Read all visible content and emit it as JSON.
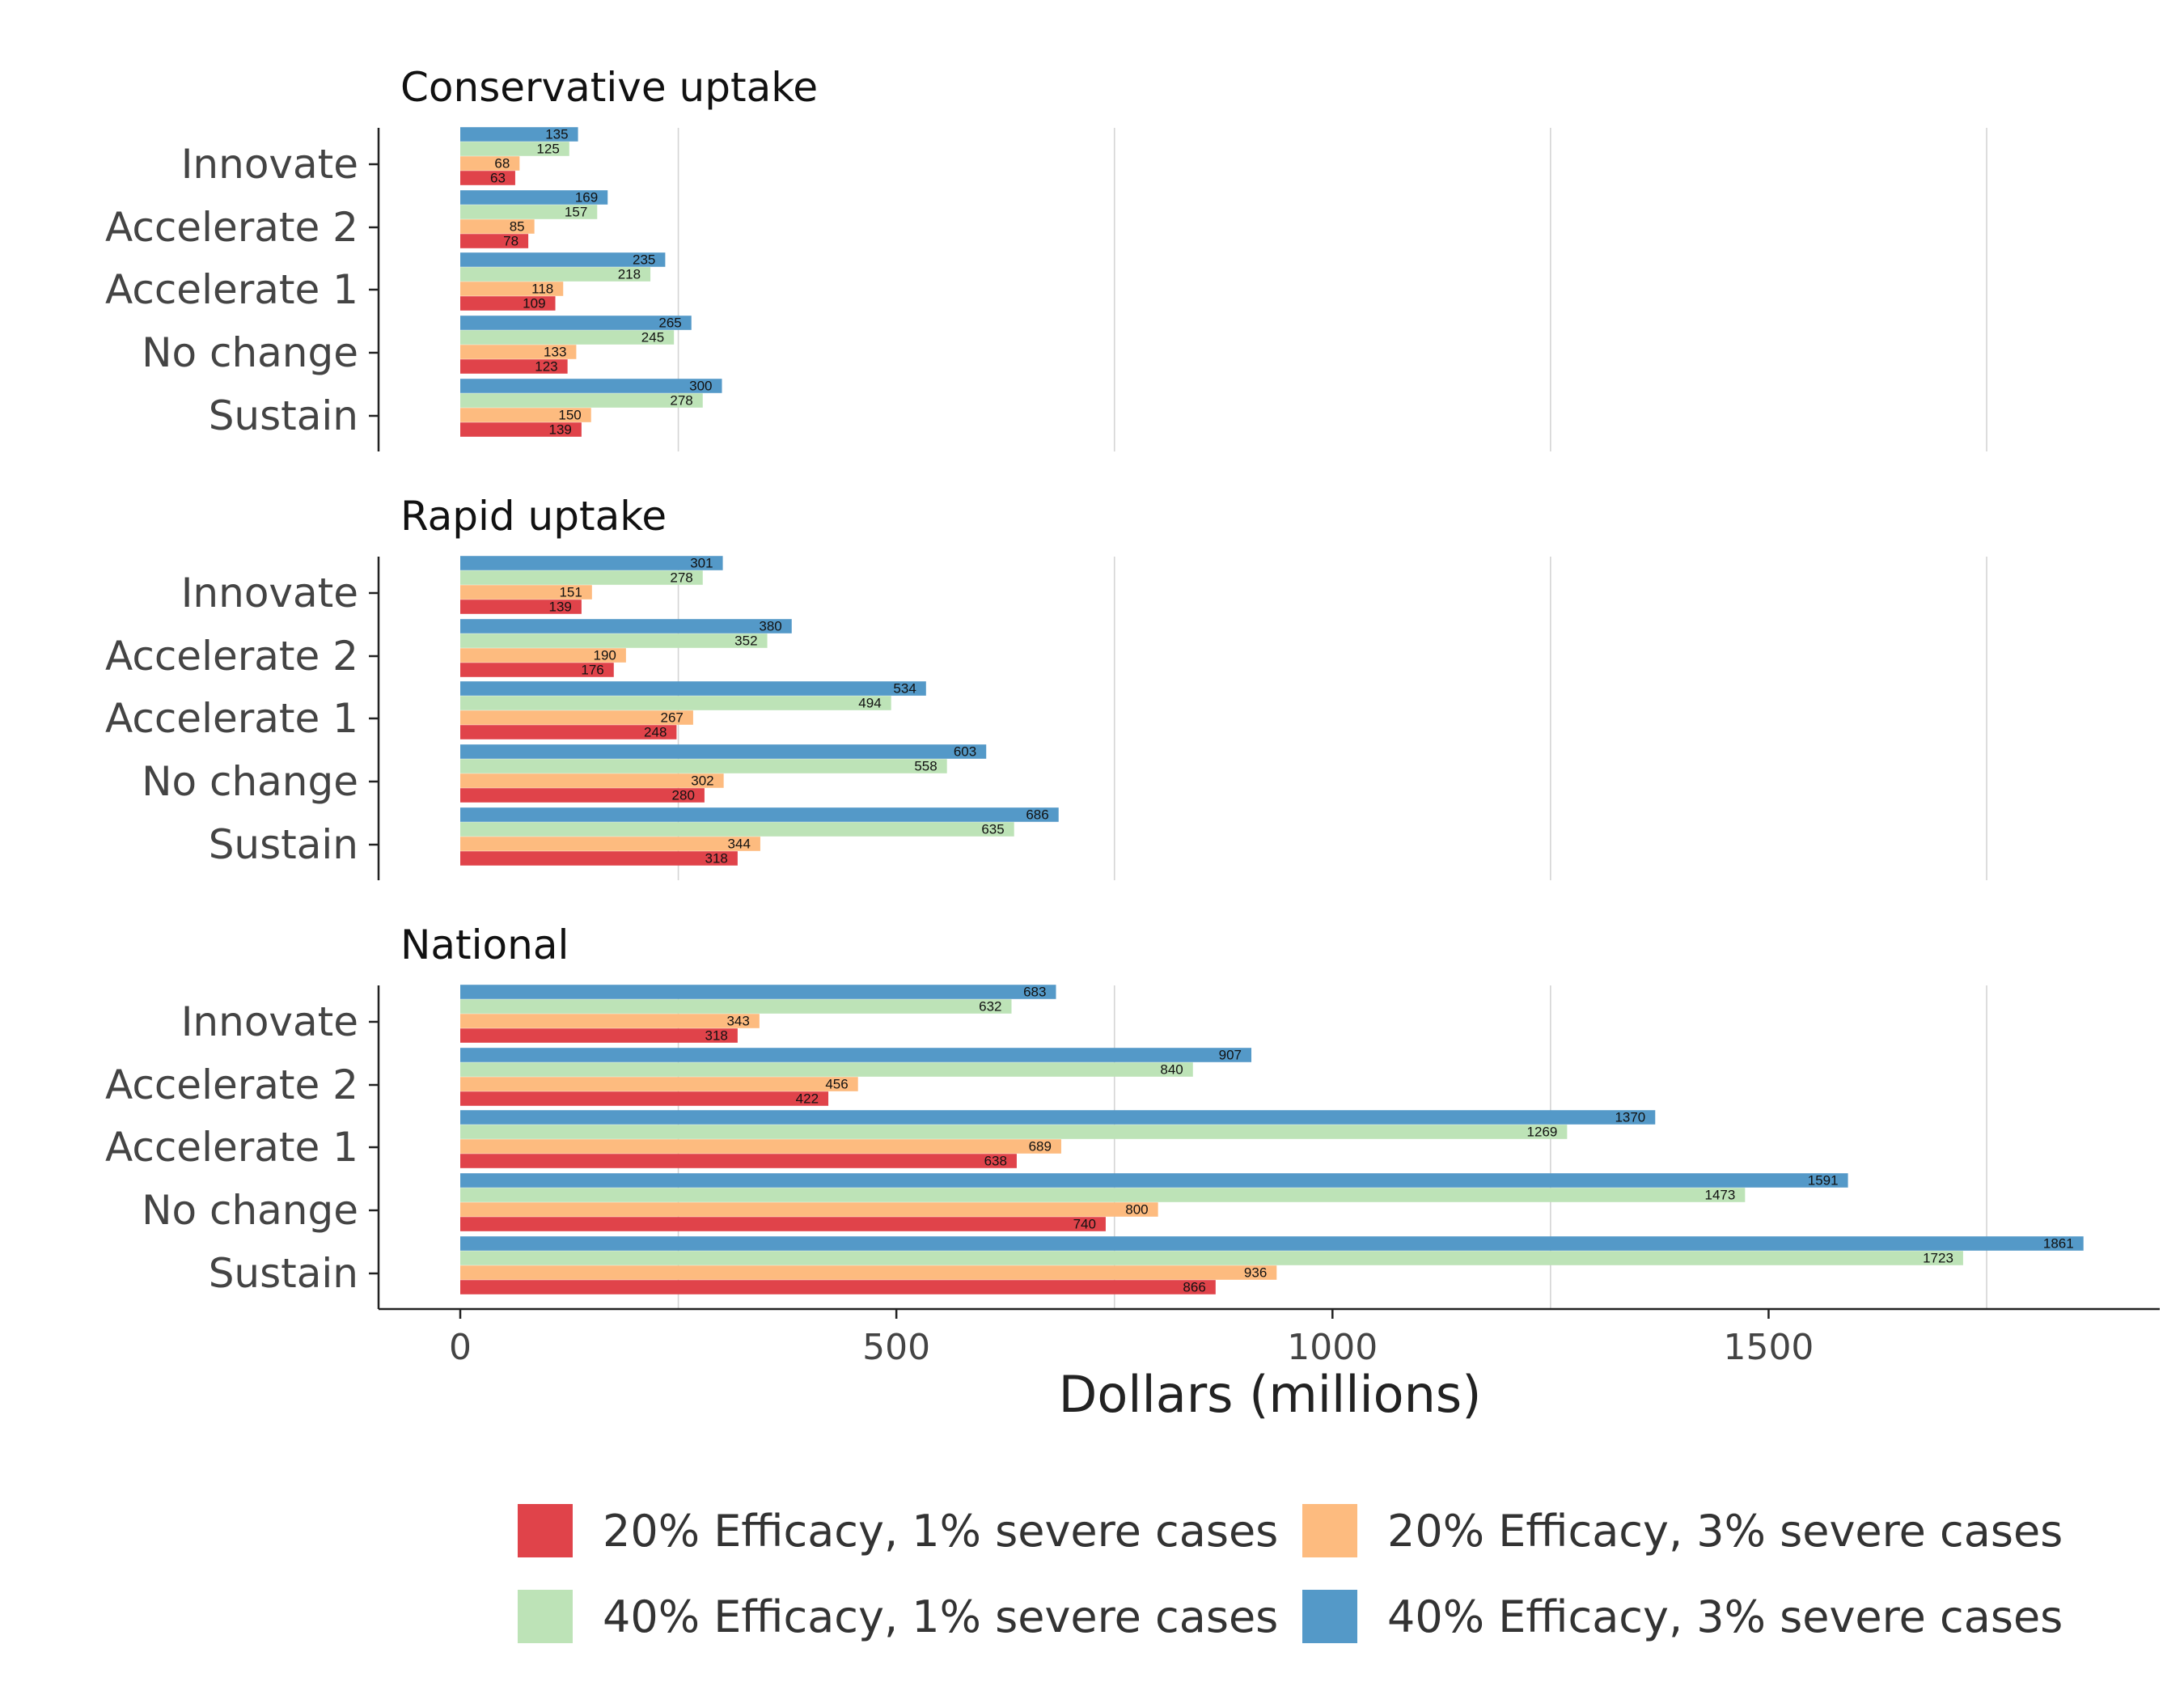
{
  "chart_data": {
    "type": "bar",
    "orientation": "horizontal",
    "xlabel": "Dollars (millions)",
    "xlim": [
      -95,
      1960
    ],
    "xticks": [
      0,
      500,
      1000,
      1500
    ],
    "grid": "vertical major lines",
    "legend_position": "bottom",
    "categories": [
      "Innovate",
      "Accelerate 2",
      "Accelerate 1",
      "No change",
      "Sustain"
    ],
    "series_order": [
      "20% Efficacy, 1% severe cases",
      "20% Efficacy, 3% severe cases",
      "40% Efficacy, 1% severe cases",
      "40% Efficacy, 3% severe cases"
    ],
    "colors": [
      "#E0434A",
      "#FDBB7F",
      "#BDE3B7",
      "#5499C8"
    ],
    "panels": [
      {
        "title": "Conservative uptake",
        "series": [
          {
            "name": "20% Efficacy, 1% severe cases",
            "values": [
              63,
              78,
              109,
              123,
              139
            ]
          },
          {
            "name": "20% Efficacy, 3% severe cases",
            "values": [
              68,
              85,
              118,
              133,
              150
            ]
          },
          {
            "name": "40% Efficacy, 1% severe cases",
            "values": [
              125,
              157,
              218,
              245,
              278
            ]
          },
          {
            "name": "40% Efficacy, 3% severe cases",
            "values": [
              135,
              169,
              235,
              265,
              300
            ]
          }
        ]
      },
      {
        "title": "Rapid uptake",
        "series": [
          {
            "name": "20% Efficacy, 1% severe cases",
            "values": [
              139,
              176,
              248,
              280,
              318
            ]
          },
          {
            "name": "20% Efficacy, 3% severe cases",
            "values": [
              151,
              190,
              267,
              302,
              344
            ]
          },
          {
            "name": "40% Efficacy, 1% severe cases",
            "values": [
              278,
              352,
              494,
              558,
              635
            ]
          },
          {
            "name": "40% Efficacy, 3% severe cases",
            "values": [
              301,
              380,
              534,
              603,
              686
            ]
          }
        ]
      },
      {
        "title": "National",
        "series": [
          {
            "name": "20% Efficacy, 1% severe cases",
            "values": [
              318,
              422,
              638,
              740,
              866
            ]
          },
          {
            "name": "20% Efficacy, 3% severe cases",
            "values": [
              343,
              456,
              689,
              800,
              936
            ]
          },
          {
            "name": "40% Efficacy, 1% severe cases",
            "values": [
              632,
              840,
              1269,
              1473,
              1723
            ]
          },
          {
            "name": "40% Efficacy, 3% severe cases",
            "values": [
              683,
              907,
              1370,
              1591,
              1861
            ]
          }
        ]
      }
    ]
  }
}
